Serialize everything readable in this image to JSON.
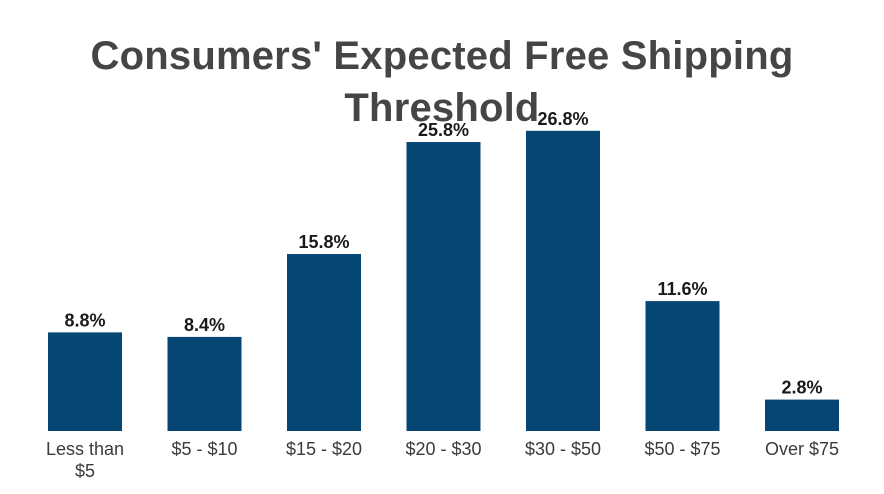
{
  "chart_data": {
    "type": "bar",
    "title": "Consumers' Expected Free Shipping Threshold",
    "xlabel": "",
    "ylabel": "",
    "categories": [
      [
        "Less than",
        "$5"
      ],
      [
        "$5 - $10"
      ],
      [
        "$15 - $20"
      ],
      [
        "$20 - $30"
      ],
      [
        "$30 - $50"
      ],
      [
        "$50 - $75"
      ],
      [
        "Over $75"
      ]
    ],
    "values": [
      8.8,
      8.4,
      15.8,
      25.8,
      26.8,
      11.6,
      2.8
    ],
    "value_labels": [
      "8.8%",
      "8.4%",
      "15.8%",
      "25.8%",
      "26.8%",
      "11.6%",
      "2.8%"
    ],
    "ylim": [
      0,
      30
    ],
    "grid": false,
    "bar_color": "#054673"
  }
}
